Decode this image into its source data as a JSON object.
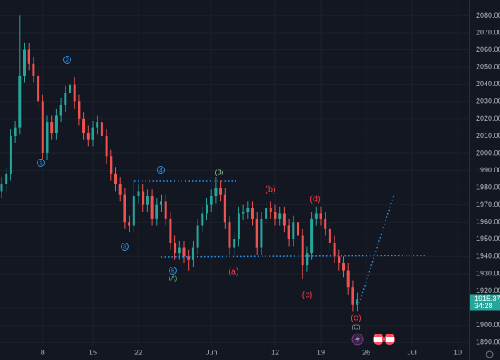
{
  "chart_data": {
    "type": "candlestick",
    "categories": [
      null,
      null,
      null,
      null,
      null,
      null,
      null,
      null,
      null,
      "8",
      null,
      null,
      null,
      null,
      null,
      null,
      null,
      null,
      null,
      null,
      "15",
      null,
      null,
      null,
      null,
      null,
      null,
      null,
      null,
      null,
      "22",
      null,
      null,
      null,
      null,
      null,
      null,
      null,
      null,
      null,
      null,
      null,
      null,
      null,
      null,
      null,
      "Jun",
      null,
      null,
      null,
      null,
      null,
      null,
      null,
      null,
      null,
      null,
      null,
      null,
      null,
      "12",
      null,
      null,
      null,
      null,
      null,
      null,
      null,
      null,
      null,
      "19",
      null,
      null,
      null,
      null,
      null,
      null,
      null,
      null,
      null,
      "26",
      null,
      null,
      null,
      null,
      null,
      null,
      null,
      null,
      null,
      "Jul",
      null,
      null,
      null,
      null,
      null,
      null,
      null,
      null,
      null,
      "10"
    ],
    "open": [
      1978,
      1982,
      1988,
      2010,
      2015,
      2045,
      2060,
      2052,
      2045,
      2030,
      2000,
      2018,
      2012,
      2022,
      2028,
      2035,
      2040,
      2030,
      2020,
      2012,
      2008,
      2015,
      2018,
      2010,
      1998,
      1988,
      1982,
      1976,
      1960,
      1958,
      1975,
      1978,
      1970,
      1975,
      1962,
      1970,
      1972,
      1962,
      1948,
      1942,
      1945,
      1940,
      1938,
      1945,
      1958,
      1965,
      1970,
      1975,
      1980,
      1976,
      1960,
      1945,
      1950,
      1965,
      1966,
      1968,
      1962,
      1945,
      1962,
      1968,
      1966,
      1962,
      1965,
      1958,
      1950,
      1960,
      1952,
      1935,
      1942,
      1962,
      1965,
      1962,
      1956,
      1948,
      1940,
      1936,
      1932,
      1922,
      1912,
      null,
      null,
      null,
      null,
      null,
      null,
      null,
      null,
      null,
      null,
      null,
      null,
      null,
      null,
      null,
      null,
      null,
      null,
      null,
      null,
      null,
      null
    ],
    "high": [
      1986,
      1992,
      2014,
      2019,
      2080,
      2064,
      2064,
      2056,
      2049,
      2034,
      2022,
      2022,
      2026,
      2032,
      2039,
      2048,
      2044,
      2034,
      2024,
      2016,
      2019,
      2022,
      2022,
      2014,
      2002,
      1992,
      1986,
      1980,
      1964,
      1984,
      1982,
      1982,
      1979,
      1979,
      1974,
      1976,
      1976,
      1966,
      1952,
      1949,
      1949,
      1944,
      1949,
      1962,
      1969,
      1974,
      1979,
      1986,
      1984,
      1980,
      1964,
      1954,
      1969,
      1970,
      1972,
      1972,
      1966,
      1966,
      1972,
      1972,
      1970,
      1969,
      1969,
      1962,
      1964,
      1964,
      1956,
      1946,
      1966,
      1969,
      1969,
      1966,
      1960,
      1952,
      1944,
      1940,
      1936,
      1926,
      1919,
      null,
      null,
      null,
      null,
      null,
      null,
      null,
      null,
      null,
      null,
      null,
      null,
      null,
      null,
      null,
      null,
      null,
      null,
      null,
      null,
      null,
      null
    ],
    "low": [
      1974,
      1978,
      1984,
      2006,
      2011,
      2041,
      2048,
      2041,
      2026,
      1996,
      1996,
      2008,
      2008,
      2018,
      2024,
      2031,
      2026,
      2016,
      2008,
      2004,
      2004,
      2011,
      2006,
      1994,
      1984,
      1978,
      1972,
      1956,
      1954,
      1954,
      1971,
      1966,
      1966,
      1958,
      1958,
      1966,
      1958,
      1944,
      1938,
      1938,
      1936,
      1932,
      1934,
      1941,
      1954,
      1961,
      1966,
      1971,
      1972,
      1956,
      1941,
      1941,
      1946,
      1961,
      1962,
      1958,
      1941,
      1941,
      1958,
      1962,
      1958,
      1958,
      1954,
      1946,
      1946,
      1948,
      1927,
      1931,
      1938,
      1958,
      1958,
      1952,
      1944,
      1936,
      1932,
      1928,
      1918,
      1908,
      1908,
      null,
      null,
      null,
      null,
      null,
      null,
      null,
      null,
      null,
      null,
      null,
      null,
      null,
      null,
      null,
      null,
      null,
      null,
      null,
      null,
      null,
      null
    ],
    "close": [
      1982,
      1988,
      2010,
      2015,
      2045,
      2060,
      2052,
      2045,
      2030,
      2000,
      2018,
      2012,
      2022,
      2028,
      2035,
      2040,
      2030,
      2020,
      2012,
      2008,
      2015,
      2018,
      2010,
      1998,
      1988,
      1982,
      1976,
      1960,
      1958,
      1975,
      1978,
      1970,
      1975,
      1962,
      1970,
      1972,
      1962,
      1948,
      1942,
      1945,
      1940,
      1938,
      1945,
      1958,
      1965,
      1970,
      1975,
      1980,
      1976,
      1960,
      1945,
      1950,
      1965,
      1966,
      1968,
      1962,
      1945,
      1962,
      1968,
      1966,
      1962,
      1965,
      1958,
      1950,
      1960,
      1952,
      1935,
      1942,
      1962,
      1965,
      1962,
      1956,
      1948,
      1940,
      1936,
      1932,
      1922,
      1912,
      1915,
      null,
      null,
      null,
      null,
      null,
      null,
      null,
      null,
      null,
      null,
      null,
      null,
      null,
      null,
      null,
      null,
      null,
      null,
      null,
      null,
      null,
      null
    ],
    "up_color": "#26a69a",
    "down_color": "#ef5350",
    "ylim": [
      1885,
      2089
    ],
    "yticks": [
      {
        "value": 1890,
        "label": "1890.00"
      },
      {
        "value": 1900,
        "label": "1900.00"
      },
      {
        "value": 1910,
        "label": "1910.00"
      },
      {
        "value": 1920,
        "label": "1920.00"
      },
      {
        "value": 1930,
        "label": "1930.00"
      },
      {
        "value": 1940,
        "label": "1940.00"
      },
      {
        "value": 1950,
        "label": "1950.00"
      },
      {
        "value": 1960,
        "label": "1960.00"
      },
      {
        "value": 1970,
        "label": "1970.00"
      },
      {
        "value": 1980,
        "label": "1980.00"
      },
      {
        "value": 1990,
        "label": "1990.00"
      },
      {
        "value": 2000,
        "label": "2000.00"
      },
      {
        "value": 2010,
        "label": "2010.00"
      },
      {
        "value": 2020,
        "label": "2020.00"
      },
      {
        "value": 2030,
        "label": "2030.00"
      },
      {
        "value": 2040,
        "label": "2040.00"
      },
      {
        "value": 2050,
        "label": "2050.00"
      },
      {
        "value": 2060,
        "label": "2060.00"
      },
      {
        "value": 2070,
        "label": "2070.00"
      },
      {
        "value": 2080,
        "label": "2080.00"
      }
    ],
    "grid": true,
    "last_price": 1915.37,
    "countdown": "34:28",
    "annotations": [
      {
        "text": "1",
        "color": "#2196f3",
        "circled": true
      },
      {
        "text": "2",
        "color": "#2196f3",
        "circled": true
      },
      {
        "text": "3",
        "color": "#2196f3",
        "circled": true
      },
      {
        "text": "4",
        "color": "#2196f3",
        "circled": true
      },
      {
        "text": "5",
        "color": "#2196f3",
        "circled": true
      },
      {
        "text": "(A)",
        "color": "#66bb6a",
        "circled": false
      },
      {
        "text": "(B)",
        "color": "#a5d6a7",
        "circled": false
      },
      {
        "text": "(a)",
        "color": "#f23645",
        "circled": false
      },
      {
        "text": "(b)",
        "color": "#f23645",
        "circled": false
      },
      {
        "text": "(c)",
        "color": "#f23645",
        "circled": false
      },
      {
        "text": "(d)",
        "color": "#f23645",
        "circled": false
      },
      {
        "text": "(e)",
        "color": "#f23645",
        "circled": false
      },
      {
        "text": "(C)",
        "color": "#9598a1",
        "circled": false
      }
    ]
  }
}
